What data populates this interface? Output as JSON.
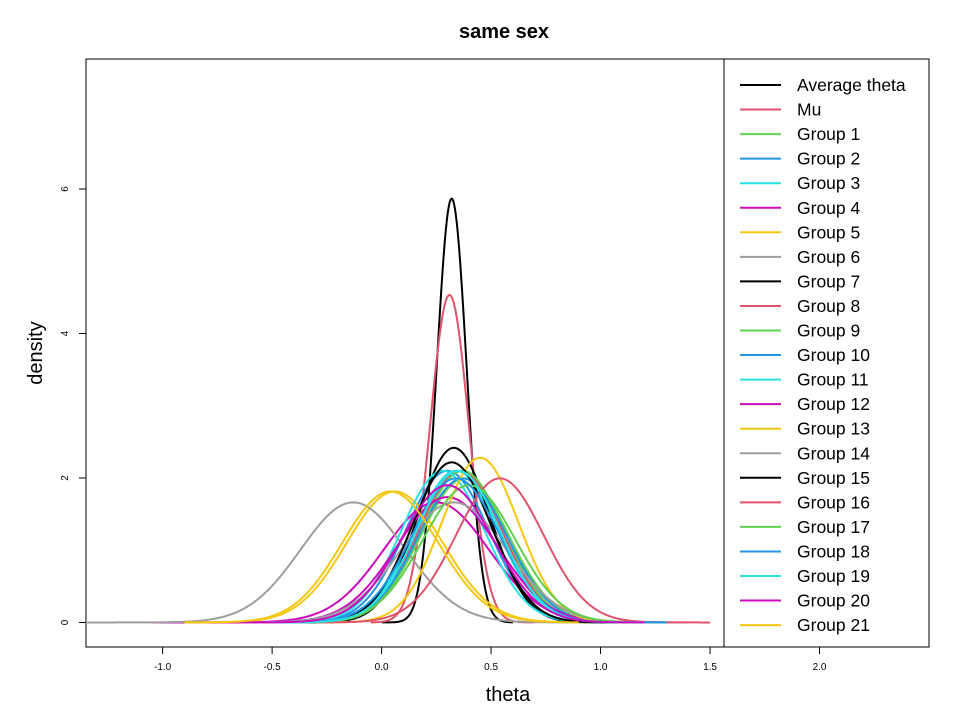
{
  "chart_data": {
    "type": "line",
    "title": "same sex",
    "xlabel": "theta",
    "ylabel": "density",
    "xlim": [
      -1.35,
      2.5
    ],
    "ylim": [
      -0.34,
      7.8
    ],
    "x_ticks": [
      {
        "value": -1.0,
        "label": "-1.0"
      },
      {
        "value": -0.5,
        "label": "-0.5"
      },
      {
        "value": 0.0,
        "label": "0.0"
      },
      {
        "value": 0.5,
        "label": "0.5"
      },
      {
        "value": 1.0,
        "label": "1.0"
      },
      {
        "value": 1.5,
        "label": "1.5"
      },
      {
        "value": 2.0,
        "label": "2.0"
      }
    ],
    "y_ticks": [
      {
        "value": 0,
        "label": "0"
      },
      {
        "value": 2,
        "label": "2"
      },
      {
        "value": 4,
        "label": "4"
      },
      {
        "value": 6,
        "label": "6"
      }
    ],
    "grid": false,
    "legend_position": "right",
    "series": [
      {
        "name": "Average theta",
        "color": "#000000",
        "mean": 0.32,
        "sd": 0.068,
        "lo": 0.0,
        "hi": 0.6
      },
      {
        "name": "Mu",
        "color": "#DF536B",
        "mean": 0.31,
        "sd": 0.088,
        "lo": -0.05,
        "hi": 0.7
      },
      {
        "name": "Group 1",
        "color": "#61D04F",
        "mean": 0.38,
        "sd": 0.2,
        "lo": -0.5,
        "hi": 1.3
      },
      {
        "name": "Group 2",
        "color": "#2297E6",
        "mean": 0.3,
        "sd": 0.19,
        "lo": -0.5,
        "hi": 1.2
      },
      {
        "name": "Group 3",
        "color": "#28E2E5",
        "mean": 0.34,
        "sd": 0.19,
        "lo": -0.5,
        "hi": 1.2
      },
      {
        "name": "Group 4",
        "color": "#CD0BBC",
        "mean": 0.25,
        "sd": 0.24,
        "lo": -1.05,
        "hi": 1.3
      },
      {
        "name": "Group 5",
        "color": "#F5C710",
        "mean": 0.06,
        "sd": 0.22,
        "lo": -0.9,
        "hi": 1.0
      },
      {
        "name": "Group 6",
        "color": "#9E9E9E",
        "mean": -0.13,
        "sd": 0.24,
        "lo": -1.35,
        "hi": 0.9
      },
      {
        "name": "Group 7",
        "color": "#000000",
        "mean": 0.33,
        "sd": 0.165,
        "lo": -0.4,
        "hi": 1.1
      },
      {
        "name": "Group 8",
        "color": "#DF536B",
        "mean": 0.36,
        "sd": 0.19,
        "lo": -0.5,
        "hi": 1.2
      },
      {
        "name": "Group 9",
        "color": "#61D04F",
        "mean": 0.37,
        "sd": 0.19,
        "lo": -0.5,
        "hi": 1.2
      },
      {
        "name": "Group 10",
        "color": "#2297E6",
        "mean": 0.37,
        "sd": 0.2,
        "lo": -0.5,
        "hi": 1.3
      },
      {
        "name": "Group 11",
        "color": "#28E2E5",
        "mean": 0.28,
        "sd": 0.19,
        "lo": -0.5,
        "hi": 1.2
      },
      {
        "name": "Group 12",
        "color": "#CD0BBC",
        "mean": 0.3,
        "sd": 0.23,
        "lo": -0.8,
        "hi": 1.3
      },
      {
        "name": "Group 13",
        "color": "#F5C710",
        "mean": 0.45,
        "sd": 0.175,
        "lo": -0.3,
        "hi": 1.2
      },
      {
        "name": "Group 14",
        "color": "#9E9E9E",
        "mean": 0.33,
        "sd": 0.24,
        "lo": -0.6,
        "hi": 1.4
      },
      {
        "name": "Group 15",
        "color": "#000000",
        "mean": 0.32,
        "sd": 0.18,
        "lo": -0.4,
        "hi": 1.2
      },
      {
        "name": "Group 16",
        "color": "#DF536B",
        "mean": 0.54,
        "sd": 0.2,
        "lo": -0.3,
        "hi": 1.5
      },
      {
        "name": "Group 17",
        "color": "#61D04F",
        "mean": 0.4,
        "sd": 0.21,
        "lo": -0.5,
        "hi": 1.3
      },
      {
        "name": "Group 18",
        "color": "#2297E6",
        "mean": 0.34,
        "sd": 0.2,
        "lo": -0.5,
        "hi": 1.3
      },
      {
        "name": "Group 19",
        "color": "#28E2E5",
        "mean": 0.35,
        "sd": 0.19,
        "lo": -0.5,
        "hi": 1.2
      },
      {
        "name": "Group 20",
        "color": "#CD0BBC",
        "mean": 0.3,
        "sd": 0.21,
        "lo": -0.6,
        "hi": 1.2
      },
      {
        "name": "Group 21",
        "color": "#F5C710",
        "mean": 0.04,
        "sd": 0.22,
        "lo": -0.9,
        "hi": 0.9
      }
    ]
  }
}
